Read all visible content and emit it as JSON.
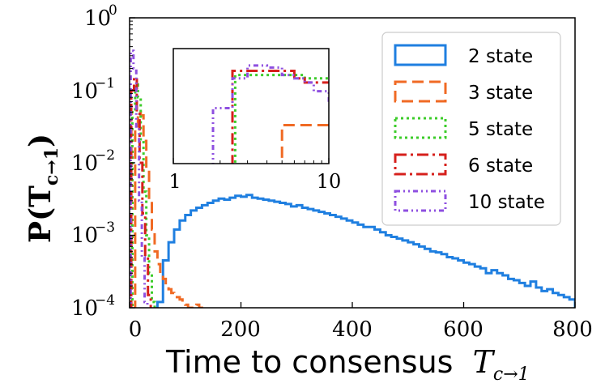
{
  "chart_data": {
    "type": "histogram",
    "xlabel": "Time to consensus",
    "xlabel_math": "T",
    "xlabel_subscript": "c→1",
    "ylabel": "P(T",
    "ylabel_subscript": "c→1",
    "ylabel_close": ")",
    "xlim": [
      0,
      800
    ],
    "ylim": [
      0.0001,
      1
    ],
    "yscale": "log",
    "xticks": [
      "0",
      "200",
      "400",
      "600",
      "800"
    ],
    "yticks": [
      {
        "base": "10",
        "exp": "0",
        "value": 1
      },
      {
        "base": "10",
        "exp": "−1",
        "value": 0.1
      },
      {
        "base": "10",
        "exp": "−2",
        "value": 0.01
      },
      {
        "base": "10",
        "exp": "−3",
        "value": 0.001
      },
      {
        "base": "10",
        "exp": "−4",
        "value": 0.0001
      }
    ],
    "legend_position": "top-right",
    "series": [
      {
        "name": "2 state",
        "color": "#1f7fe0",
        "dash": "",
        "bin_width": 10,
        "edges_start": 50,
        "values": [
          0.00012,
          0.00045,
          0.0008,
          0.0012,
          0.0016,
          0.0019,
          0.0022,
          0.0024,
          0.0026,
          0.0028,
          0.003,
          0.0032,
          0.0031,
          0.0033,
          0.0035,
          0.0034,
          0.0036,
          0.0033,
          0.0032,
          0.0031,
          0.003,
          0.0029,
          0.0028,
          0.0027,
          0.0025,
          0.0026,
          0.0024,
          0.0023,
          0.0022,
          0.0021,
          0.002,
          0.0019,
          0.0018,
          0.0017,
          0.0016,
          0.0015,
          0.0014,
          0.0013,
          0.0013,
          0.0012,
          0.0011,
          0.001,
          0.00095,
          0.0009,
          0.00085,
          0.0008,
          0.00075,
          0.0007,
          0.00065,
          0.0006,
          0.00058,
          0.00055,
          0.0005,
          0.00048,
          0.00045,
          0.00042,
          0.0004,
          0.00037,
          0.00035,
          0.0003,
          0.00033,
          0.0003,
          0.00028,
          0.00025,
          0.00024,
          0.00022,
          0.0002,
          0.00023,
          0.00019,
          0.00017,
          0.00018,
          0.00016,
          0.00015,
          0.00014,
          0.00013
        ]
      },
      {
        "name": "3 state",
        "color": "#f06a24",
        "dash": "14,7",
        "bin_width": 5,
        "edges_start": 10,
        "values": [
          0.03,
          0.05,
          0.045,
          0.02,
          0.008,
          0.003,
          0.0012,
          0.0006,
          0.0004,
          0.0003,
          0.00025,
          0.0002,
          0.00018,
          0.00016,
          0.00015,
          0.00014,
          0.00013,
          0.00012,
          0.00011,
          0.0001,
          0.0001,
          0.0001,
          0.00011,
          0.0001
        ]
      },
      {
        "name": "5 state",
        "color": "#3ccc2a",
        "dash": "3,4",
        "bin_width": 5,
        "edges_start": 5,
        "values": [
          0.05,
          0.12,
          0.08,
          0.02,
          0.004,
          0.001,
          0.0003,
          0.00012
        ]
      },
      {
        "name": "6 state",
        "color": "#d6201c",
        "dash": "14,5,3,5",
        "bin_width": 5,
        "edges_start": 3,
        "values": [
          0.1,
          0.15,
          0.05,
          0.01,
          0.002,
          0.0005,
          0.00015
        ]
      },
      {
        "name": "10 state",
        "color": "#8e4fe0",
        "dash": "6,4,2,4,2,4",
        "bin_width": 5,
        "edges_start": 2,
        "values": [
          0.35,
          0.2,
          0.03,
          0.003,
          0.0005,
          0.00012
        ]
      }
    ],
    "inset": {
      "xscale": "log",
      "xlim": [
        1,
        10
      ],
      "xticks": [
        "1",
        "10"
      ],
      "ylim": [
        0.001,
        0.5
      ],
      "series": [
        {
          "name": "2 state",
          "edges": [],
          "values": []
        },
        {
          "name": "3 state",
          "edges": [
            4,
            5,
            6,
            7,
            8,
            9,
            10
          ],
          "values": [
            0.0001,
            0.008,
            0.008,
            0.008,
            0.008,
            0.008,
            0.008
          ]
        },
        {
          "name": "5 state",
          "edges": [
            2.2,
            2.5,
            3,
            4,
            5,
            6,
            7,
            8,
            10
          ],
          "values": [
            0.0001,
            0.12,
            0.12,
            0.12,
            0.12,
            0.12,
            0.1,
            0.1,
            0.1
          ]
        },
        {
          "name": "6 state",
          "edges": [
            2.1,
            2.4,
            3,
            4,
            5,
            6,
            7,
            8,
            10
          ],
          "values": [
            0.0001,
            0.15,
            0.15,
            0.15,
            0.15,
            0.1,
            0.08,
            0.08,
            0.08
          ]
        },
        {
          "name": "10 state",
          "edges": [
            1.8,
            2.1,
            2.4,
            3,
            3.5,
            4,
            5,
            6,
            7,
            8,
            10
          ],
          "values": [
            0.02,
            0.02,
            0.1,
            0.2,
            0.2,
            0.18,
            0.12,
            0.1,
            0.08,
            0.05,
            0.03
          ]
        }
      ]
    }
  }
}
